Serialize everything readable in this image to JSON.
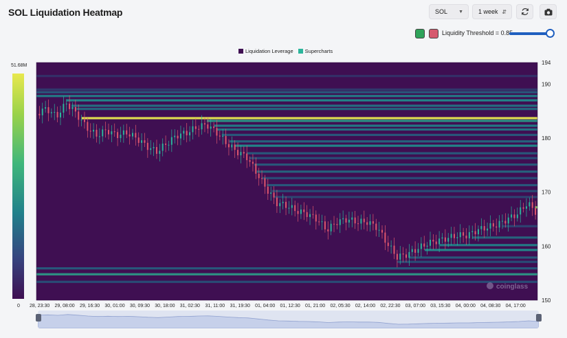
{
  "title": "SOL Liquidation Heatmap",
  "controls": {
    "symbol": "SOL",
    "timeframe": "1 week",
    "refresh_icon": "refresh-icon",
    "camera_icon": "camera-icon",
    "threshold_label": "Liquidity Threshold = 0.85",
    "threshold_value": 0.85,
    "swatch_colors": [
      "#2fa35a",
      "#d65a6e"
    ]
  },
  "colors": {
    "bg_heat": "#3f0f52",
    "up_candle": "#2bb59b",
    "down_candle": "#e0566d",
    "slider": "#1f5fbf"
  },
  "colorbar": {
    "max_label": "51.68M",
    "min_label": "0"
  },
  "watermark": "coinglass",
  "chart_data": {
    "type": "heatmap",
    "title": "SOL Liquidation Heatmap",
    "legend": [
      "Liquidation Leverage",
      "Supercharts"
    ],
    "legend_colors": [
      "#3f0f52",
      "#2bb59b"
    ],
    "legend_position": "top-center",
    "y_axis_position": "right",
    "ylim": [
      150,
      194
    ],
    "y_ticks": [
      150,
      160,
      170,
      180,
      190,
      194
    ],
    "x_labels": [
      "28, 23:30",
      "29, 08:00",
      "29, 16:30",
      "30, 01:00",
      "30, 09:30",
      "30, 18:00",
      "31, 02:30",
      "31, 11:00",
      "31, 19:30",
      "01, 04:00",
      "01, 12:30",
      "01, 21:00",
      "02, 05:30",
      "02, 14:00",
      "02, 22:30",
      "03, 07:00",
      "03, 15:30",
      "04, 00:00",
      "04, 08:30",
      "04, 17:00"
    ],
    "price_path": [
      [
        0,
        184.5
      ],
      [
        2,
        185.5
      ],
      [
        4,
        184
      ],
      [
        6,
        186.5
      ],
      [
        8,
        184.5
      ],
      [
        10,
        182
      ],
      [
        12,
        180.5
      ],
      [
        14,
        181.5
      ],
      [
        16,
        180.5
      ],
      [
        18,
        181
      ],
      [
        20,
        180
      ],
      [
        22,
        178.5
      ],
      [
        24,
        177.5
      ],
      [
        26,
        179
      ],
      [
        28,
        180.5
      ],
      [
        30,
        181
      ],
      [
        32,
        182
      ],
      [
        34,
        182.5
      ],
      [
        36,
        181
      ],
      [
        38,
        179
      ],
      [
        40,
        177.5
      ],
      [
        42,
        176.5
      ],
      [
        44,
        173.5
      ],
      [
        46,
        170.5
      ],
      [
        48,
        168
      ],
      [
        50,
        167.5
      ],
      [
        52,
        166.5
      ],
      [
        54,
        166
      ],
      [
        56,
        165
      ],
      [
        58,
        163
      ],
      [
        60,
        164.5
      ],
      [
        62,
        165
      ],
      [
        64,
        164.5
      ],
      [
        66,
        164.5
      ],
      [
        68,
        163.5
      ],
      [
        70,
        160.5
      ],
      [
        72,
        158
      ],
      [
        74,
        158.5
      ],
      [
        76,
        159.5
      ],
      [
        78,
        160.5
      ],
      [
        80,
        161
      ],
      [
        82,
        161.5
      ],
      [
        84,
        162
      ],
      [
        86,
        162
      ],
      [
        88,
        163
      ],
      [
        90,
        163.5
      ],
      [
        92,
        164
      ],
      [
        94,
        165
      ],
      [
        96,
        166
      ],
      [
        98,
        168
      ],
      [
        100,
        166
      ]
    ],
    "liquidation_levels": [
      {
        "price": 191.5,
        "intensity": 0.15
      },
      {
        "price": 189,
        "intensity": 0.2
      },
      {
        "price": 188.5,
        "intensity": 0.35
      },
      {
        "price": 187.8,
        "intensity": 0.5
      },
      {
        "price": 187,
        "intensity": 0.55
      },
      {
        "price": 186,
        "intensity": 0.45
      },
      {
        "price": 185.4,
        "intensity": 0.4
      },
      {
        "price": 183.7,
        "intensity": 1.0
      },
      {
        "price": 183.2,
        "intensity": 0.6
      },
      {
        "price": 182.3,
        "intensity": 0.5
      },
      {
        "price": 181.6,
        "intensity": 0.45
      },
      {
        "price": 180.6,
        "intensity": 0.35
      },
      {
        "price": 179.4,
        "intensity": 0.4
      },
      {
        "price": 178.6,
        "intensity": 0.55
      },
      {
        "price": 177.2,
        "intensity": 0.35
      },
      {
        "price": 176.3,
        "intensity": 0.3
      },
      {
        "price": 175.1,
        "intensity": 0.35
      },
      {
        "price": 173.8,
        "intensity": 0.4
      },
      {
        "price": 172.6,
        "intensity": 0.3
      },
      {
        "price": 171.3,
        "intensity": 0.35
      },
      {
        "price": 170.2,
        "intensity": 0.3
      },
      {
        "price": 169.1,
        "intensity": 0.25
      },
      {
        "price": 167.2,
        "intensity": 0.85
      },
      {
        "price": 165.8,
        "intensity": 0.35
      },
      {
        "price": 163.7,
        "intensity": 0.25
      },
      {
        "price": 161.6,
        "intensity": 0.4
      },
      {
        "price": 160.2,
        "intensity": 0.5
      },
      {
        "price": 159.3,
        "intensity": 0.55
      },
      {
        "price": 157.9,
        "intensity": 0.35
      },
      {
        "price": 157.1,
        "intensity": 0.3
      },
      {
        "price": 155.9,
        "intensity": 0.35
      },
      {
        "price": 154.8,
        "intensity": 0.6
      },
      {
        "price": 153.4,
        "intensity": 0.3
      }
    ]
  }
}
